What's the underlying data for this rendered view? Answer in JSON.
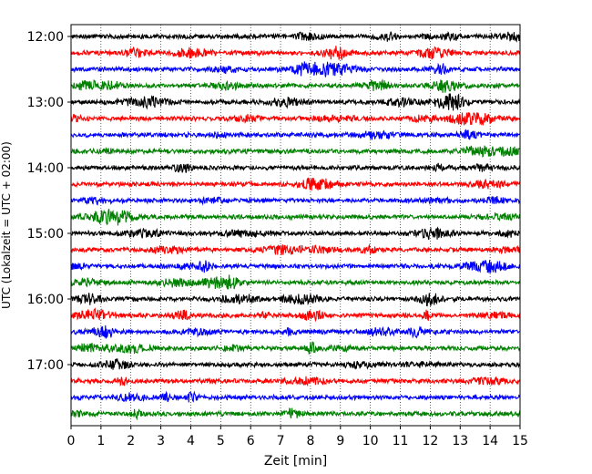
{
  "chart_data": {
    "type": "line",
    "title": "",
    "xlabel": "Zeit  [min]",
    "ylabel": "UTC (Lokalzeit = UTC + 02:00)",
    "xlim": [
      0,
      15
    ],
    "x_ticks": [
      "0",
      "1",
      "2",
      "3",
      "4",
      "5",
      "6",
      "7",
      "8",
      "9",
      "10",
      "11",
      "12",
      "13",
      "14",
      "15"
    ],
    "y_ticks": [
      "12:00",
      "13:00",
      "14:00",
      "15:00",
      "16:00",
      "17:00"
    ],
    "grid": "vertical dotted at each minute",
    "trace_interval_minutes": 15,
    "trace_start": "12:00",
    "trace_count": 24,
    "trace_colors": [
      "#000000",
      "#ff0000",
      "#0000ff",
      "#008000"
    ],
    "series": [
      {
        "start": "12:00",
        "color": "#000000"
      },
      {
        "start": "12:15",
        "color": "#ff0000"
      },
      {
        "start": "12:30",
        "color": "#0000ff"
      },
      {
        "start": "12:45",
        "color": "#008000"
      },
      {
        "start": "13:00",
        "color": "#000000"
      },
      {
        "start": "13:15",
        "color": "#ff0000"
      },
      {
        "start": "13:30",
        "color": "#0000ff"
      },
      {
        "start": "13:45",
        "color": "#008000"
      },
      {
        "start": "14:00",
        "color": "#000000"
      },
      {
        "start": "14:15",
        "color": "#ff0000"
      },
      {
        "start": "14:30",
        "color": "#0000ff"
      },
      {
        "start": "14:45",
        "color": "#008000"
      },
      {
        "start": "15:00",
        "color": "#000000"
      },
      {
        "start": "15:15",
        "color": "#ff0000"
      },
      {
        "start": "15:30",
        "color": "#0000ff"
      },
      {
        "start": "15:45",
        "color": "#008000"
      },
      {
        "start": "16:00",
        "color": "#000000"
      },
      {
        "start": "16:15",
        "color": "#ff0000"
      },
      {
        "start": "16:30",
        "color": "#0000ff"
      },
      {
        "start": "16:45",
        "color": "#008000"
      },
      {
        "start": "17:00",
        "color": "#000000"
      },
      {
        "start": "17:15",
        "color": "#ff0000"
      },
      {
        "start": "17:30",
        "color": "#0000ff"
      },
      {
        "start": "17:45",
        "color": "#008000"
      }
    ]
  }
}
